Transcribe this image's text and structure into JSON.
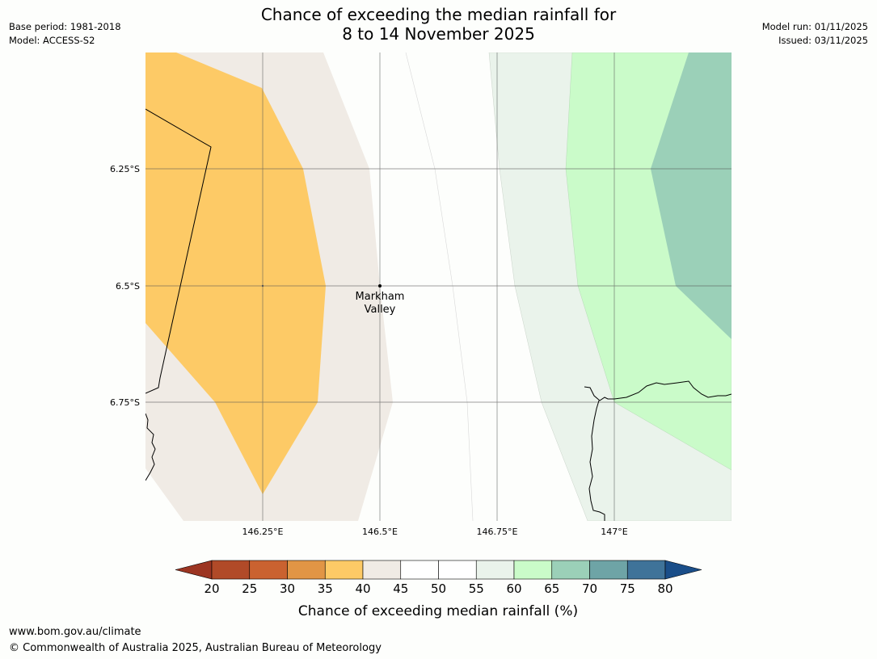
{
  "header": {
    "title_line1": "Chance of exceeding the median rainfall for",
    "title_line2": "8 to 14 November 2025",
    "base_period": "Base period: 1981-2018",
    "model": "Model: ACCESS-S2",
    "model_run": "Model run: 01/11/2025",
    "issued": "Issued: 03/11/2025"
  },
  "map": {
    "lat_labels": [
      "6.25°S",
      "6.5°S",
      "6.75°S"
    ],
    "lon_labels": [
      "146.25°E",
      "146.5°E",
      "146.75°E",
      "147°E"
    ],
    "place": {
      "name_line1": "Markham",
      "name_line2": "Valley"
    }
  },
  "colorbar": {
    "ticks": [
      "20",
      "25",
      "30",
      "35",
      "40",
      "45",
      "50",
      "55",
      "60",
      "65",
      "70",
      "75",
      "80"
    ],
    "title": "Chance of exceeding median rainfall (%)",
    "colors": {
      "under20": "#9c3522",
      "c20_25": "#b14a28",
      "c25_30": "#ca6230",
      "c30_35": "#e19545",
      "c35_40": "#fdca66",
      "c40_45": "#f0ebe5",
      "c45_50": "#ffffff",
      "c50_55": "#ffffff",
      "c55_60": "#eaf3eb",
      "c60_65": "#cafbc9",
      "c65_70": "#9bd0b8",
      "c70_75": "#6ea4a6",
      "c75_80": "#3f7399",
      "over80": "#1a4e89"
    }
  },
  "footer": {
    "url": "www.bom.gov.au/climate",
    "copyright": "© Commonwealth of Australia 2025, Australian Bureau of Meteorology"
  }
}
